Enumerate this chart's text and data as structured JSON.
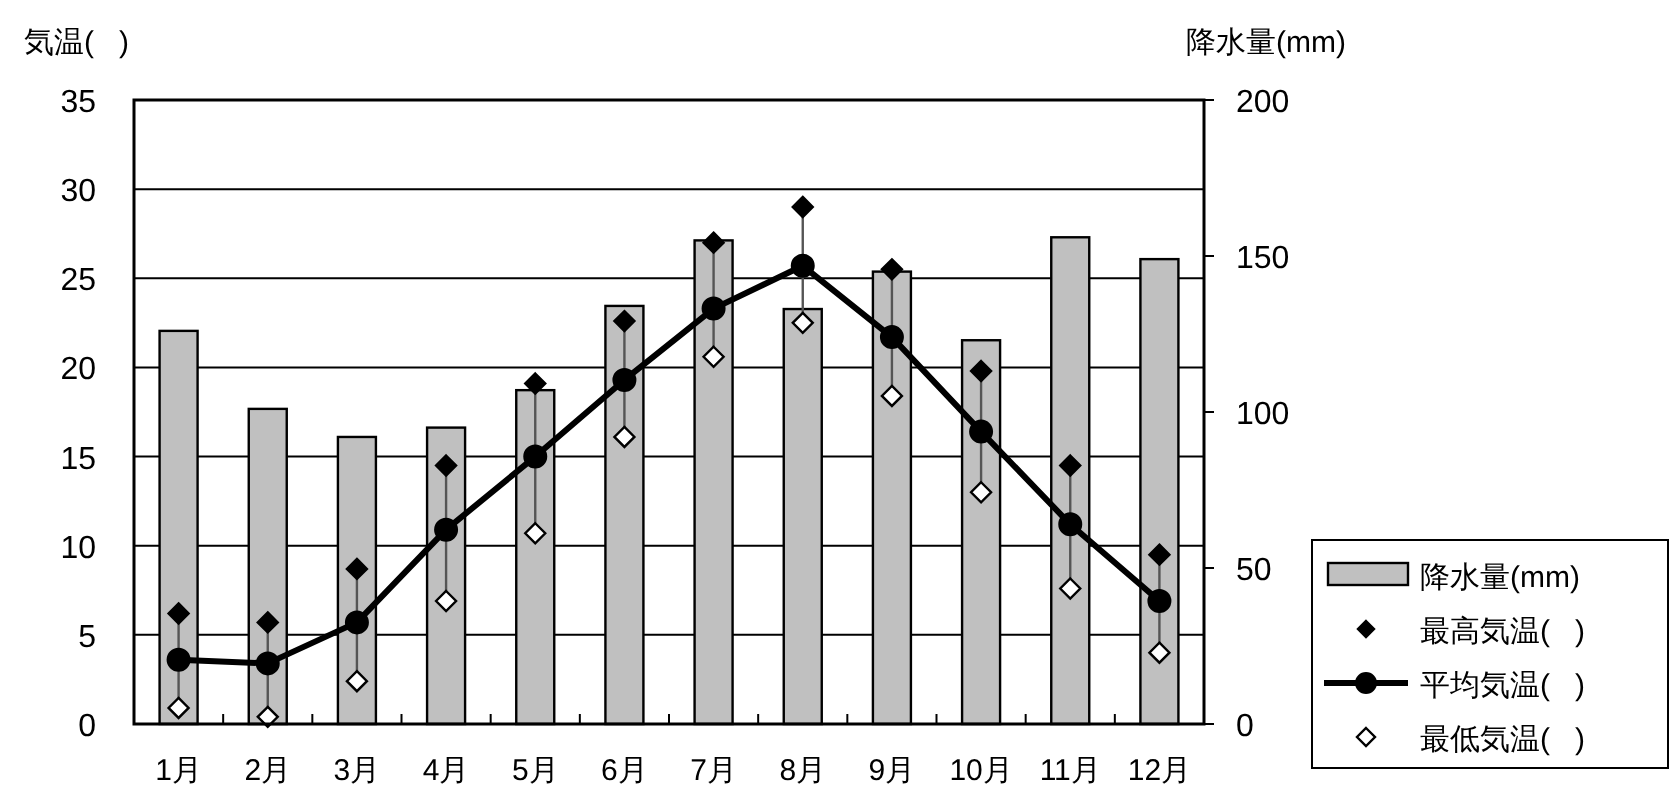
{
  "chart_data": {
    "type": "bar",
    "ylabel": "気温(   )",
    "y2label": "降水量(mm)",
    "categories": [
      "1月",
      "2月",
      "3月",
      "4月",
      "5月",
      "6月",
      "7月",
      "8月",
      "9月",
      "10月",
      "11月",
      "12月"
    ],
    "series": [
      {
        "name": "降水量(mm)",
        "axis": "y2",
        "color": "#c0c0c0",
        "values": [
          126,
          101,
          92,
          95,
          107,
          134,
          155,
          133,
          145,
          123,
          156,
          149
        ]
      },
      {
        "name": "最高気温(   )",
        "type": "scatter",
        "marker": "diamond",
        "color": "#000000",
        "values": [
          6.2,
          5.7,
          8.7,
          14.5,
          19.1,
          22.6,
          27.0,
          29.0,
          25.5,
          19.8,
          14.5,
          9.5
        ]
      },
      {
        "name": "平均気温(   )",
        "type": "line",
        "marker": "circle",
        "color": "#000000",
        "values": [
          3.6,
          3.4,
          5.7,
          10.9,
          15.0,
          19.3,
          23.3,
          25.7,
          21.7,
          16.4,
          11.2,
          6.9
        ]
      },
      {
        "name": "最低気温(   )",
        "type": "scatter",
        "marker": "diamond",
        "color": "#ffffff",
        "values": [
          0.9,
          0.4,
          2.4,
          6.9,
          10.7,
          16.1,
          20.6,
          22.5,
          18.4,
          13.0,
          7.6,
          4.0
        ]
      }
    ],
    "ylim": [
      0,
      35
    ],
    "yticks": [
      0,
      5,
      10,
      15,
      20,
      25,
      30,
      35
    ],
    "y2lim": [
      0,
      200
    ],
    "y2ticks": [
      0,
      50,
      100,
      150,
      200
    ],
    "grid": "y",
    "legend": "bottom right"
  }
}
